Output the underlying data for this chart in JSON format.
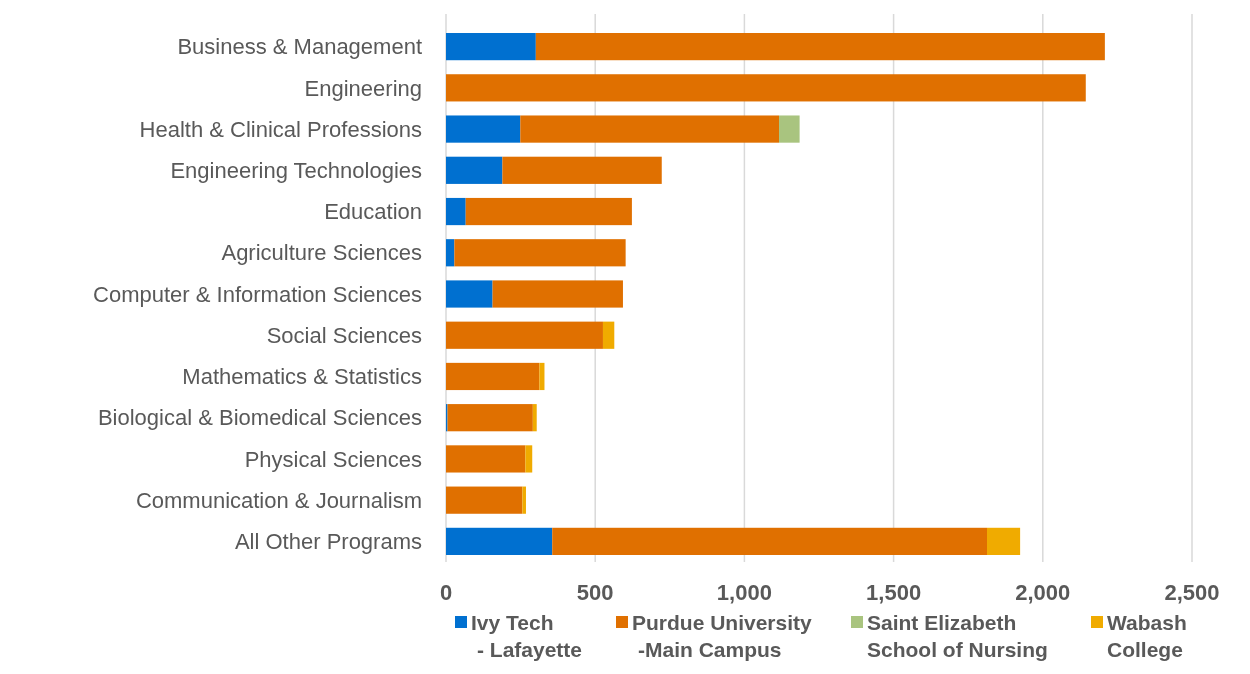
{
  "chart_data": {
    "type": "bar",
    "orientation": "horizontal",
    "stacked": true,
    "categories": [
      "Business & Management",
      "Engineering",
      "Health & Clinical Professions",
      "Engineering Technologies",
      "Education",
      "Agriculture Sciences",
      "Computer & Information Sciences",
      "Social Sciences",
      "Mathematics & Statistics",
      "Biological & Biomedical Sciences",
      "Physical Sciences",
      "Communication & Journalism",
      "All Other Programs"
    ],
    "series": [
      {
        "name": "Ivy Tech\n- Lafayette",
        "color": "#0070d0",
        "values": [
          301,
          null,
          249,
          189,
          66,
          28,
          156,
          null,
          null,
          5,
          null,
          null,
          356
        ]
      },
      {
        "name": "Purdue University\n-Main Campus",
        "color": "#e07000",
        "values": [
          1907,
          2144,
          867,
          534,
          557,
          574,
          437,
          526,
          313,
          286,
          266,
          256,
          1457
        ]
      },
      {
        "name": "Saint Elizabeth\nSchool of Nursing",
        "color": "#a9c47f",
        "values": [
          null,
          null,
          69,
          null,
          null,
          null,
          null,
          null,
          null,
          null,
          null,
          null,
          null
        ]
      },
      {
        "name": "Wabash\nCollege",
        "color": "#f0ab00",
        "values": [
          null,
          null,
          null,
          null,
          null,
          null,
          null,
          38,
          17,
          13,
          23,
          12,
          111
        ]
      }
    ],
    "xlim": [
      0,
      2500
    ],
    "xticks": [
      0,
      {
        "value": 500,
        "label": "500"
      },
      {
        "value": 1000,
        "label": "1,000"
      },
      {
        "value": 1500,
        "label": "1,500"
      },
      {
        "value": 2000,
        "label": "2,000"
      },
      {
        "value": 2500,
        "label": "2,500"
      }
    ],
    "grid": "x",
    "legend": "bottom"
  }
}
